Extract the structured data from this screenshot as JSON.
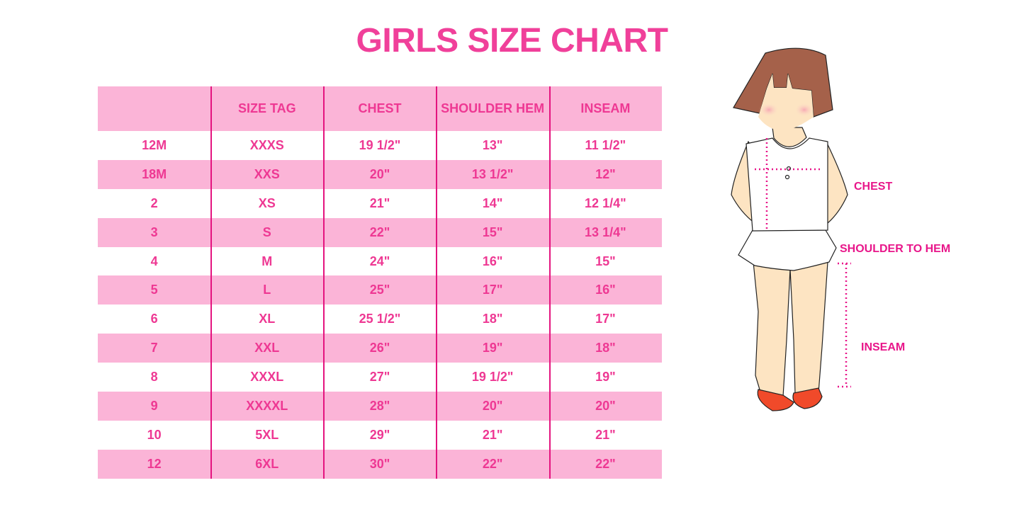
{
  "title": "GIRLS SIZE CHART",
  "table": {
    "headers": [
      "",
      "SIZE TAG",
      "CHEST",
      "SHOULDER HEM",
      "INSEAM"
    ],
    "rows": [
      [
        "12M",
        "XXXS",
        "19 1/2\"",
        "13\"",
        "11 1/2\""
      ],
      [
        "18M",
        "XXS",
        "20\"",
        "13 1/2\"",
        "12\""
      ],
      [
        "2",
        "XS",
        "21\"",
        "14\"",
        "12 1/4\""
      ],
      [
        "3",
        "S",
        "22\"",
        "15\"",
        "13 1/4\""
      ],
      [
        "4",
        "M",
        "24\"",
        "16\"",
        "15\""
      ],
      [
        "5",
        "L",
        "25\"",
        "17\"",
        "16\""
      ],
      [
        "6",
        "XL",
        "25 1/2\"",
        "18\"",
        "17\""
      ],
      [
        "7",
        "XXL",
        "26\"",
        "19\"",
        "18\""
      ],
      [
        "8",
        "XXXL",
        "27\"",
        "19 1/2\"",
        "19\""
      ],
      [
        "9",
        "XXXXL",
        "28\"",
        "20\"",
        "20\""
      ],
      [
        "10",
        "5XL",
        "29\"",
        "21\"",
        "21\""
      ],
      [
        "12",
        "6XL",
        "30\"",
        "22\"",
        "22\""
      ]
    ]
  },
  "illustration": {
    "labels": {
      "chest": "CHEST",
      "shoulder_to_hem": "SHOULDER TO HEM",
      "inseam": "INSEAM"
    }
  },
  "colors": {
    "title": "#f0409a",
    "row_pink": "#fbb4d7",
    "text": "#ee3893",
    "divider": "#e4147f",
    "measure": "#e8168a"
  }
}
